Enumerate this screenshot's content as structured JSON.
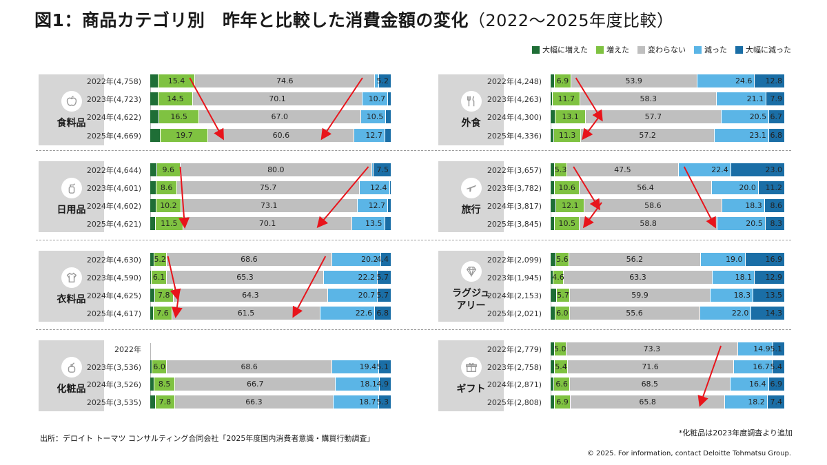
{
  "title": {
    "main": "図1：商品カテゴリ別　昨年と比較した消費金額の変化",
    "sub": "（2022～2025年度比較）"
  },
  "legend": [
    {
      "label": "大幅に増えた",
      "color": "#1f6e36"
    },
    {
      "label": "増えた",
      "color": "#7fc241"
    },
    {
      "label": "変わらない",
      "color": "#bfbfbf"
    },
    {
      "label": "減った",
      "color": "#5bb5e6"
    },
    {
      "label": "大幅に減った",
      "color": "#1a6ea6"
    }
  ],
  "chart_data": {
    "type": "bar",
    "stacked": true,
    "orientation": "horizontal",
    "series_names": [
      "大幅に増えた",
      "増えた",
      "変わらない",
      "減った",
      "大幅に減った"
    ],
    "panels": [
      {
        "category": "食料品",
        "icon": "apple-icon",
        "rows": [
          {
            "label": "2022年(4,758)",
            "values": [
              3.3,
              15.4,
              74.6,
              1.6,
              5.2
            ],
            "labels": [
              "",
              "15.4",
              "74.6",
              "",
              "5.2"
            ]
          },
          {
            "label": "2023年(4,723)",
            "values": [
              3.3,
              14.5,
              70.1,
              10.7,
              1.4
            ],
            "labels": [
              "",
              "14.5",
              "70.1",
              "10.7",
              ""
            ]
          },
          {
            "label": "2024年(4,622)",
            "values": [
              3.8,
              16.5,
              67.0,
              10.5,
              2.2
            ],
            "labels": [
              "",
              "16.5",
              "67.0",
              "10.5",
              ""
            ]
          },
          {
            "label": "2025年(4,669)",
            "values": [
              4.4,
              19.7,
              60.6,
              12.7,
              2.6
            ],
            "labels": [
              "",
              "19.7",
              "60.6",
              "12.7",
              ""
            ]
          }
        ]
      },
      {
        "category": "外食",
        "icon": "fork-knife-icon",
        "rows": [
          {
            "label": "2022年(4,248)",
            "values": [
              1.8,
              6.9,
              53.9,
              24.6,
              12.8
            ],
            "labels": [
              "",
              "6.9",
              "53.9",
              "24.6",
              "12.8"
            ]
          },
          {
            "label": "2023年(4,263)",
            "values": [
              1.0,
              11.7,
              58.3,
              21.1,
              7.9
            ],
            "labels": [
              "",
              "11.7",
              "58.3",
              "21.1",
              "7.9"
            ]
          },
          {
            "label": "2024年(4,300)",
            "values": [
              2.0,
              13.1,
              57.7,
              20.5,
              6.7
            ],
            "labels": [
              "",
              "13.1",
              "57.7",
              "20.5",
              "6.7"
            ]
          },
          {
            "label": "2025年(4,336)",
            "values": [
              1.6,
              11.3,
              57.2,
              23.1,
              6.8
            ],
            "labels": [
              "",
              "11.3",
              "57.2",
              "23.1",
              "6.8"
            ]
          }
        ]
      },
      {
        "category": "日用品",
        "icon": "spray-bottle-icon",
        "rows": [
          {
            "label": "2022年(4,644)",
            "values": [
              2.9,
              9.6,
              80.0,
              0.5,
              7.5
            ],
            "labels": [
              "",
              "9.6",
              "80.0",
              "",
              "7.5"
            ]
          },
          {
            "label": "2023年(4,601)",
            "values": [
              2.6,
              8.6,
              75.7,
              12.4,
              0.7
            ],
            "labels": [
              "",
              "8.6",
              "75.7",
              "12.4",
              ""
            ]
          },
          {
            "label": "2024年(4,602)",
            "values": [
              2.6,
              10.2,
              73.1,
              12.7,
              1.4
            ],
            "labels": [
              "",
              "10.2",
              "73.1",
              "12.7",
              ""
            ]
          },
          {
            "label": "2025年(4,621)",
            "values": [
              2.2,
              11.5,
              70.1,
              13.5,
              2.7
            ],
            "labels": [
              "",
              "11.5",
              "70.1",
              "13.5",
              ""
            ]
          }
        ]
      },
      {
        "category": "旅行",
        "icon": "airplane-icon",
        "rows": [
          {
            "label": "2022年(3,657)",
            "values": [
              1.8,
              5.3,
              47.5,
              22.4,
              23.0
            ],
            "labels": [
              "",
              "5.3",
              "47.5",
              "22.4",
              "23.0"
            ]
          },
          {
            "label": "2023年(3,782)",
            "values": [
              1.8,
              10.6,
              56.4,
              20.0,
              11.2
            ],
            "labels": [
              "",
              "10.6",
              "56.4",
              "20.0",
              "11.2"
            ]
          },
          {
            "label": "2024年(3,817)",
            "values": [
              2.4,
              12.1,
              58.6,
              18.3,
              8.6
            ],
            "labels": [
              "",
              "12.1",
              "58.6",
              "18.3",
              "8.6"
            ]
          },
          {
            "label": "2025年(3,845)",
            "values": [
              1.9,
              10.5,
              58.8,
              20.5,
              8.3
            ],
            "labels": [
              "",
              "10.5",
              "58.8",
              "20.5",
              "8.3"
            ]
          }
        ]
      },
      {
        "category": "衣料品",
        "icon": "tshirt-icon",
        "rows": [
          {
            "label": "2022年(4,630)",
            "values": [
              1.6,
              5.2,
              68.6,
              20.2,
              4.4
            ],
            "labels": [
              "",
              "5.2",
              "68.6",
              "20.2",
              "4.4"
            ]
          },
          {
            "label": "2023年(4,590)",
            "values": [
              0.7,
              6.1,
              65.3,
              22.2,
              5.7
            ],
            "labels": [
              "",
              "6.1",
              "65.3",
              "22.2",
              "5.7"
            ]
          },
          {
            "label": "2024年(4,625)",
            "values": [
              1.9,
              7.8,
              64.3,
              20.7,
              5.7
            ],
            "labels": [
              "",
              "7.8",
              "64.3",
              "20.7",
              "5.7"
            ]
          },
          {
            "label": "2025年(4,617)",
            "values": [
              1.5,
              7.6,
              61.5,
              22.6,
              6.8
            ],
            "labels": [
              "",
              "7.6",
              "61.5",
              "22.6",
              "6.8"
            ]
          }
        ]
      },
      {
        "category": "ラグジュアリー",
        "category_lines": [
          "ラグジュ",
          "アリー"
        ],
        "icon": "diamond-icon",
        "rows": [
          {
            "label": "2022年(2,099)",
            "values": [
              2.3,
              5.6,
              56.2,
              19.0,
              16.9
            ],
            "labels": [
              "",
              "5.6",
              "56.2",
              "19.0",
              "16.9"
            ]
          },
          {
            "label": "2023年(1,945)",
            "values": [
              1.1,
              4.6,
              63.3,
              18.1,
              12.9
            ],
            "labels": [
              "",
              "4.6",
              "63.3",
              "18.1",
              "12.9"
            ]
          },
          {
            "label": "2024年(2,153)",
            "values": [
              2.6,
              5.7,
              59.9,
              18.3,
              13.5
            ],
            "labels": [
              "",
              "5.7",
              "59.9",
              "18.3",
              "13.5"
            ]
          },
          {
            "label": "2025年(2,021)",
            "values": [
              2.1,
              6.0,
              55.6,
              22.0,
              14.3
            ],
            "labels": [
              "",
              "6.0",
              "55.6",
              "22.0",
              "14.3"
            ]
          }
        ]
      },
      {
        "category": "化粧品",
        "icon": "perfume-icon",
        "rows": [
          {
            "label": "2022年",
            "values": [],
            "labels": []
          },
          {
            "label": "2023年(3,536)",
            "values": [
              0.9,
              6.0,
              68.6,
              19.4,
              5.1
            ],
            "labels": [
              "",
              "6.0",
              "68.6",
              "19.4",
              "5.1"
            ]
          },
          {
            "label": "2024年(3,526)",
            "values": [
              1.8,
              8.5,
              66.7,
              18.1,
              4.9
            ],
            "labels": [
              "",
              "8.5",
              "66.7",
              "18.1",
              "4.9"
            ]
          },
          {
            "label": "2025年(3,535)",
            "values": [
              2.4,
              7.8,
              66.3,
              18.7,
              5.3
            ],
            "labels": [
              "",
              "7.8",
              "66.3",
              "18.7",
              "5.3"
            ]
          }
        ]
      },
      {
        "category": "ギフト",
        "icon": "gift-icon",
        "rows": [
          {
            "label": "2022年(2,779)",
            "values": [
              1.7,
              5.0,
              73.3,
              14.9,
              5.1
            ],
            "labels": [
              "",
              "5.0",
              "73.3",
              "14.9",
              "5.1"
            ]
          },
          {
            "label": "2023年(2,758)",
            "values": [
              1.9,
              5.4,
              71.6,
              16.7,
              5.4
            ],
            "labels": [
              "",
              "5.4",
              "71.6",
              "16.7",
              "5.4"
            ]
          },
          {
            "label": "2024年(2,871)",
            "values": [
              1.6,
              6.6,
              68.5,
              16.4,
              6.9
            ],
            "labels": [
              "",
              "6.6",
              "68.5",
              "16.4",
              "6.9"
            ]
          },
          {
            "label": "2025年(2,808)",
            "values": [
              1.7,
              6.9,
              65.8,
              18.2,
              7.4
            ],
            "labels": [
              "",
              "6.9",
              "65.8",
              "18.2",
              "7.4"
            ]
          }
        ]
      }
    ]
  },
  "footnote": "*化粧品は2023年度調査より追加",
  "source": "出所：デロイト トーマツ コンサルティング合同会社「2025年度国内消費者意識・購買行動調査」",
  "copyright": "© 2025. For information, contact Deloitte Tohmatsu Group."
}
